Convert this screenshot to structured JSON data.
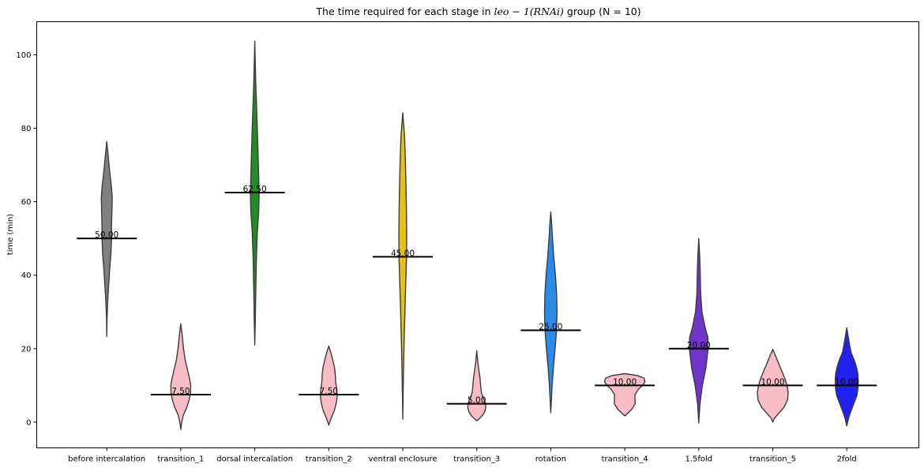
{
  "chart_data": {
    "type": "violin",
    "title_parts": {
      "prefix": "The time required for each stage in ",
      "math": "leo − 1(RNAi)",
      "suffix": " group (N = 10)"
    },
    "xlabel": "",
    "ylabel": "time (min)",
    "ylim": [
      -7,
      109
    ],
    "yticks": [
      0,
      20,
      40,
      60,
      80,
      100
    ],
    "grid": false,
    "categories": [
      "before intercalation",
      "transition_1",
      "dorsal intercalation",
      "transition_2",
      "ventral enclosure",
      "transition_3",
      "rotation",
      "transition_4",
      "1.5fold",
      "transition_5",
      "2fold"
    ],
    "colors": [
      "#808080",
      "#f7bcc8",
      "#228b22",
      "#f7bcc8",
      "#e6c014",
      "#f7bcc8",
      "#2a8ce8",
      "#f7bcc8",
      "#7034c8",
      "#f7bcc8",
      "#2222ee"
    ],
    "medians": [
      50,
      7.5,
      62.5,
      7.5,
      45,
      5,
      25,
      10,
      20,
      10,
      10
    ],
    "median_labels": [
      "50.00",
      "7.50",
      "62.50",
      "7.50",
      "45.00",
      "5.00",
      "25.00",
      "10.00",
      "20.00",
      "10.00",
      "10.00"
    ],
    "violins": [
      {
        "min": 23.3,
        "max": 76.4,
        "profile": [
          [
            23.3,
            0
          ],
          [
            28,
            0.3
          ],
          [
            33,
            1.2
          ],
          [
            38,
            2.6
          ],
          [
            42,
            3.8
          ],
          [
            46,
            5.3
          ],
          [
            50,
            6.0
          ],
          [
            54,
            6.1
          ],
          [
            58,
            6.6
          ],
          [
            61,
            6.9
          ],
          [
            64,
            6.0
          ],
          [
            68,
            3.8
          ],
          [
            72,
            2.0
          ],
          [
            76.4,
            0
          ]
        ]
      },
      {
        "min": -2.0,
        "max": 26.8,
        "profile": [
          [
            -2,
            0
          ],
          [
            0,
            1.2
          ],
          [
            2,
            3.4
          ],
          [
            4,
            7.6
          ],
          [
            6,
            10.6
          ],
          [
            8,
            12.4
          ],
          [
            10,
            12.6
          ],
          [
            12,
            11.0
          ],
          [
            14,
            8.8
          ],
          [
            17,
            5.5
          ],
          [
            20,
            3.5
          ],
          [
            23,
            2.1
          ],
          [
            26.8,
            0
          ]
        ]
      },
      {
        "min": 21.0,
        "max": 103.7,
        "profile": [
          [
            21,
            0
          ],
          [
            28,
            0.7
          ],
          [
            35,
            1.2
          ],
          [
            45,
            2.1
          ],
          [
            52,
            3.3
          ],
          [
            57,
            4.9
          ],
          [
            62,
            5.5
          ],
          [
            67,
            5.0
          ],
          [
            72,
            4.3
          ],
          [
            78,
            3.5
          ],
          [
            85,
            2.4
          ],
          [
            92,
            1.3
          ],
          [
            98,
            0.6
          ],
          [
            103.7,
            0
          ]
        ]
      },
      {
        "min": -0.8,
        "max": 20.7,
        "profile": [
          [
            -0.8,
            0
          ],
          [
            1,
            2.8
          ],
          [
            3,
            6.8
          ],
          [
            5,
            9.3
          ],
          [
            7,
            10.7
          ],
          [
            9,
            10.0
          ],
          [
            11,
            8.7
          ],
          [
            13,
            8.3
          ],
          [
            15,
            7.2
          ],
          [
            17,
            5.0
          ],
          [
            19,
            2.6
          ],
          [
            20.7,
            0
          ]
        ]
      },
      {
        "min": 0.8,
        "max": 84.2,
        "profile": [
          [
            0.8,
            0
          ],
          [
            10,
            0.6
          ],
          [
            20,
            1.5
          ],
          [
            30,
            2.7
          ],
          [
            38,
            3.8
          ],
          [
            45,
            4.8
          ],
          [
            52,
            4.9
          ],
          [
            58,
            4.6
          ],
          [
            65,
            4.0
          ],
          [
            72,
            3.2
          ],
          [
            78,
            2.2
          ],
          [
            84.2,
            0
          ]
        ]
      },
      {
        "min": 0.4,
        "max": 19.4,
        "profile": [
          [
            0.4,
            0
          ],
          [
            1,
            3.3
          ],
          [
            2,
            7.8
          ],
          [
            3,
            10.3
          ],
          [
            4,
            11.3
          ],
          [
            5,
            11.2
          ],
          [
            6,
            9.3
          ],
          [
            8,
            5.9
          ],
          [
            10,
            4.9
          ],
          [
            12,
            4.1
          ],
          [
            14,
            2.8
          ],
          [
            16,
            1.5
          ],
          [
            19.4,
            0
          ]
        ]
      },
      {
        "min": 2.6,
        "max": 57.2,
        "profile": [
          [
            2.6,
            0
          ],
          [
            6,
            0.8
          ],
          [
            10,
            1.7
          ],
          [
            15,
            3.4
          ],
          [
            20,
            5.5
          ],
          [
            25,
            7.3
          ],
          [
            30,
            7.9
          ],
          [
            35,
            7.4
          ],
          [
            40,
            5.9
          ],
          [
            45,
            3.8
          ],
          [
            50,
            2.2
          ],
          [
            54,
            1.1
          ],
          [
            57.2,
            0
          ]
        ]
      },
      {
        "min": 1.7,
        "max": 13.2,
        "profile": [
          [
            1.7,
            0
          ],
          [
            2.5,
            4.1
          ],
          [
            3.5,
            8.9
          ],
          [
            5,
            13.2
          ],
          [
            6.5,
            13.0
          ],
          [
            7.5,
            12.9
          ],
          [
            9,
            17.4
          ],
          [
            10,
            22.7
          ],
          [
            11,
            25.6
          ],
          [
            12,
            24.4
          ],
          [
            12.7,
            16.0
          ],
          [
            13.2,
            0
          ]
        ]
      },
      {
        "min": -0.2,
        "max": 50.0,
        "profile": [
          [
            -0.2,
            0
          ],
          [
            5,
            1.5
          ],
          [
            10,
            4.6
          ],
          [
            15,
            9.2
          ],
          [
            20,
            11.9
          ],
          [
            23,
            11.6
          ],
          [
            26,
            7.8
          ],
          [
            30,
            4.1
          ],
          [
            35,
            2.4
          ],
          [
            40,
            1.9
          ],
          [
            45,
            1.2
          ],
          [
            50,
            0
          ]
        ]
      },
      {
        "min": 0.0,
        "max": 19.8,
        "profile": [
          [
            0,
            0
          ],
          [
            1,
            1.8
          ],
          [
            2,
            5.9
          ],
          [
            4,
            14.0
          ],
          [
            6,
            18.7
          ],
          [
            8,
            19.5
          ],
          [
            10,
            18.1
          ],
          [
            12,
            15.1
          ],
          [
            14,
            11.3
          ],
          [
            16,
            7.4
          ],
          [
            18,
            3.6
          ],
          [
            19.8,
            0
          ]
        ]
      },
      {
        "min": -1.0,
        "max": 25.7,
        "profile": [
          [
            -1,
            0
          ],
          [
            1,
            2.1
          ],
          [
            3,
            5.3
          ],
          [
            5,
            8.8
          ],
          [
            7,
            12.5
          ],
          [
            9,
            14.2
          ],
          [
            11,
            14.6
          ],
          [
            13,
            14.2
          ],
          [
            15,
            12.3
          ],
          [
            17,
            9.3
          ],
          [
            19,
            5.4
          ],
          [
            22,
            2.8
          ],
          [
            25.7,
            0
          ]
        ]
      }
    ]
  }
}
